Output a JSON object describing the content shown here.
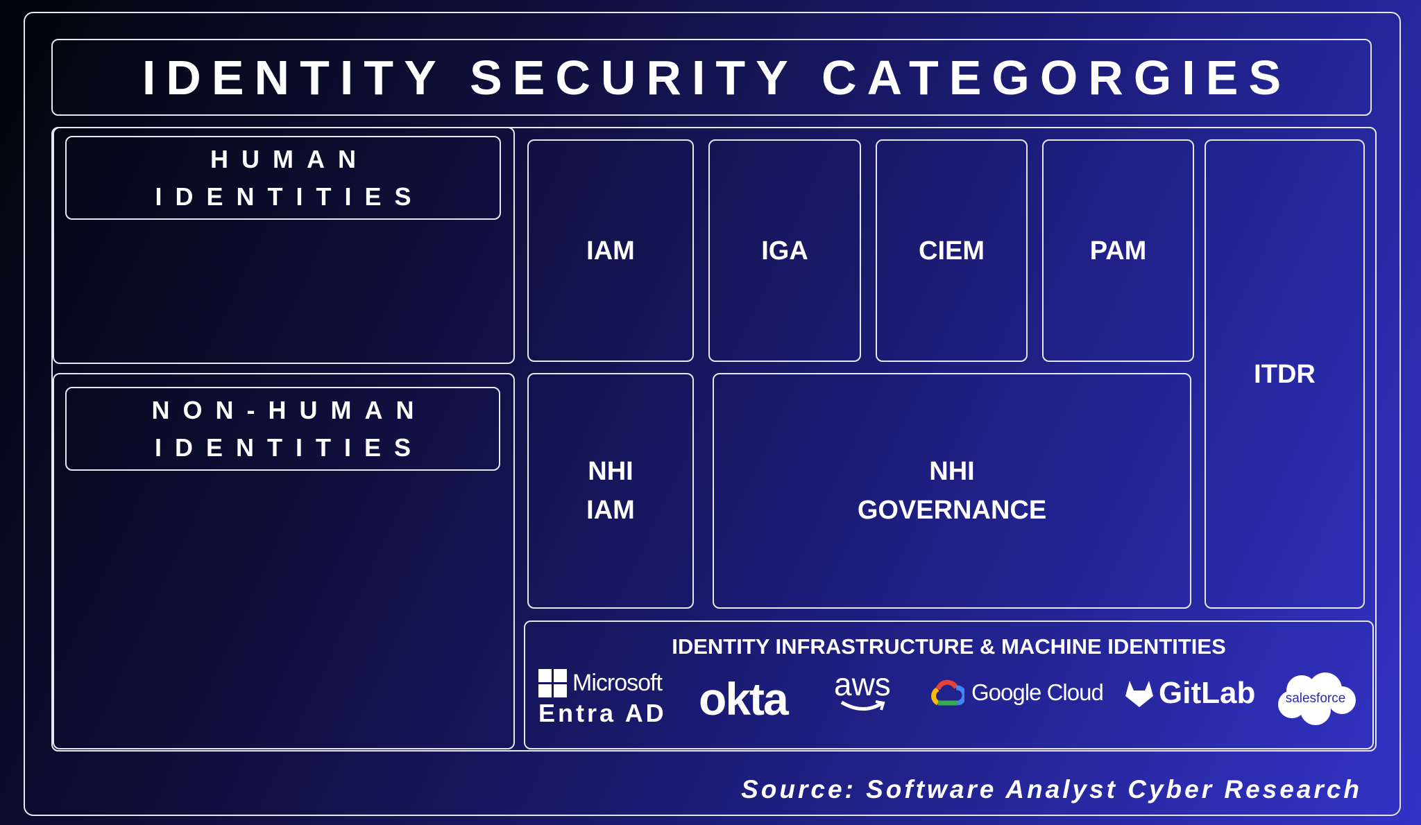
{
  "title": "IDENTITY SECURITY CATEGORGIES",
  "human": {
    "line1": "HUMAN",
    "line2": "IDENTITIES"
  },
  "nonhuman": {
    "line1": "NON-HUMAN",
    "line2": "IDENTITIES"
  },
  "categories": {
    "iam": "IAM",
    "iga": "IGA",
    "ciem": "CIEM",
    "pam": "PAM",
    "itdr": "ITDR",
    "nhi_iam": {
      "line1": "NHI",
      "line2": "IAM"
    },
    "nhi_gov": {
      "line1": "NHI",
      "line2": "GOVERNANCE"
    }
  },
  "infra": {
    "title": "IDENTITY INFRASTRUCTURE & MACHINE IDENTITIES",
    "logos": {
      "microsoft": "Microsoft",
      "entra": "Entra AD",
      "okta": "okta",
      "aws": "aws",
      "google": "Google Cloud",
      "gitlab": "GitLab",
      "salesforce": "salesforce"
    }
  },
  "source": "Source: Software Analyst Cyber Research",
  "colors": {
    "border": "#e8e8f4",
    "bg_dark": "#03030a",
    "bg_accent": "#3333c8"
  }
}
